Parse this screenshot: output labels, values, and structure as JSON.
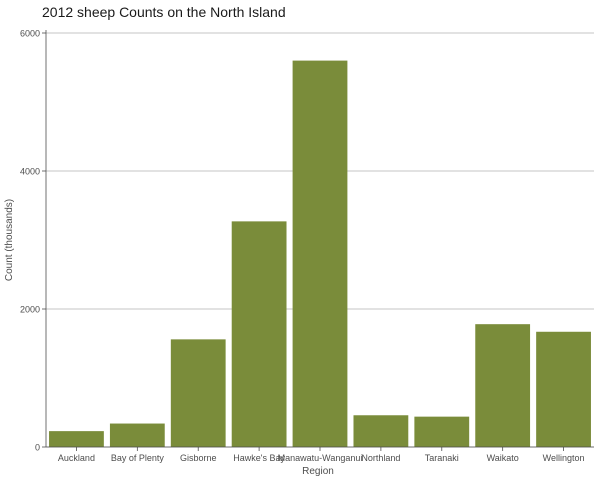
{
  "chart_data": {
    "type": "bar",
    "title": "2012 sheep Counts on the North Island",
    "xlabel": "Region",
    "ylabel": "Count (thousands)",
    "categories": [
      "Auckland",
      "Bay of Plenty",
      "Gisborne",
      "Hawke's Bay",
      "Manawatu-Wanganui",
      "Northland",
      "Taranaki",
      "Waikato",
      "Wellington"
    ],
    "values": [
      230,
      340,
      1560,
      3270,
      5600,
      460,
      440,
      1780,
      1670
    ],
    "ylim": [
      0,
      6000
    ],
    "yticks": [
      0,
      2000,
      4000,
      6000
    ],
    "grid": "horizontal",
    "legend": "none",
    "colors": {
      "bar": "#7a8c3a",
      "grid": "#b3b3b3",
      "axis": "#4d4d4d",
      "text": "#4d4d4d"
    }
  }
}
